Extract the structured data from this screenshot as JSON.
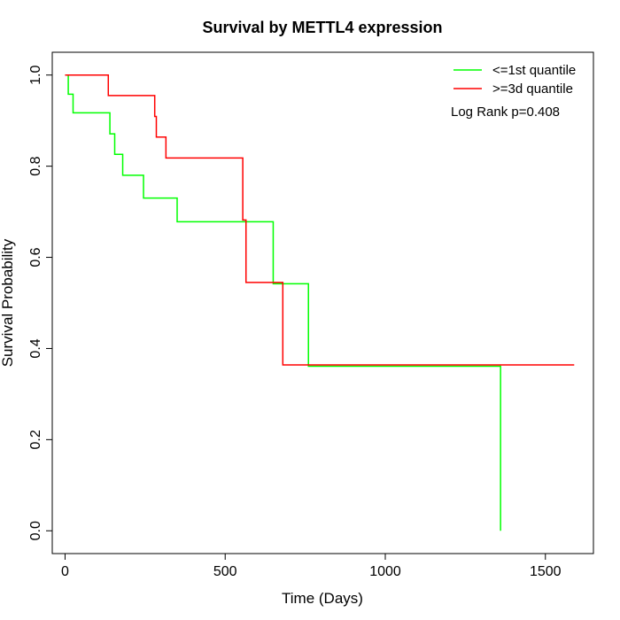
{
  "chart_data": {
    "type": "line",
    "subtype": "kaplan-meier step",
    "title": "Survival by METTL4 expression",
    "xlabel": "Time (Days)",
    "ylabel": "Survival Probability",
    "xlim": [
      -40,
      1650
    ],
    "ylim": [
      -0.05,
      1.05
    ],
    "xticks": [
      0,
      500,
      1000,
      1500
    ],
    "yticks": [
      0.0,
      0.2,
      0.4,
      0.6,
      0.8,
      1.0
    ],
    "xtick_labels": [
      "0",
      "500",
      "1000",
      "1500"
    ],
    "ytick_labels": [
      "0.0",
      "0.2",
      "0.4",
      "0.6",
      "0.8",
      "1.0"
    ],
    "grid": false,
    "legend_position": "top-right",
    "annotation": "Log Rank p=0.408",
    "series": [
      {
        "name": "<=1st quantile",
        "color": "#00ff00",
        "steps": [
          [
            0,
            1.0
          ],
          [
            10,
            0.958
          ],
          [
            25,
            0.917
          ],
          [
            140,
            0.871
          ],
          [
            155,
            0.826
          ],
          [
            180,
            0.78
          ],
          [
            245,
            0.73
          ],
          [
            350,
            0.678
          ],
          [
            650,
            0.542
          ],
          [
            760,
            0.361
          ],
          [
            1360,
            0.0
          ]
        ]
      },
      {
        "name": ">=3d quantile",
        "color": "#ff0000",
        "steps": [
          [
            0,
            1.0
          ],
          [
            135,
            0.955
          ],
          [
            280,
            0.909
          ],
          [
            285,
            0.864
          ],
          [
            315,
            0.818
          ],
          [
            555,
            0.682
          ],
          [
            565,
            0.545
          ],
          [
            680,
            0.364
          ],
          [
            1590,
            0.364
          ]
        ]
      }
    ]
  }
}
